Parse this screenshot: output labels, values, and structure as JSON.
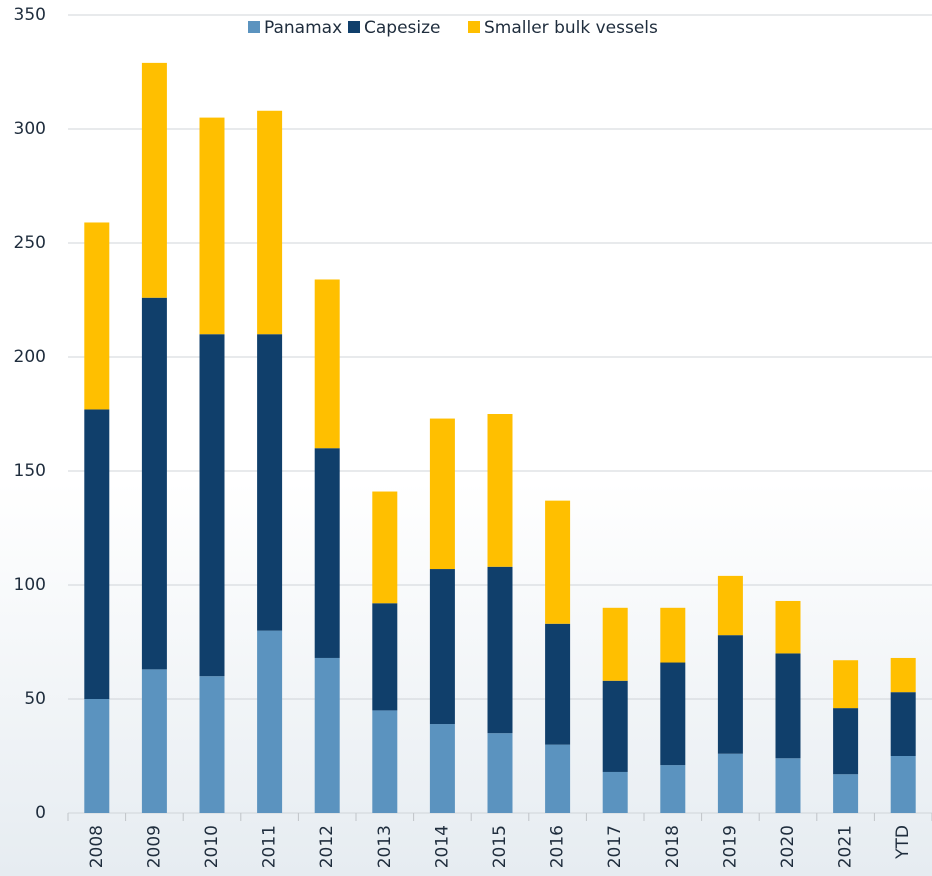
{
  "chart_data": {
    "type": "stacked-bar",
    "categories": [
      "2008",
      "2009",
      "2010",
      "2011",
      "2012",
      "2013",
      "2014",
      "2015",
      "2016",
      "2017",
      "2018",
      "2019",
      "2020",
      "2021",
      "YTD"
    ],
    "series": [
      {
        "name": "Panamax",
        "color": "#5b93bf",
        "values": [
          50,
          63,
          60,
          80,
          68,
          45,
          39,
          35,
          30,
          18,
          21,
          26,
          24,
          17,
          25
        ]
      },
      {
        "name": "Capesize",
        "color": "#103f6b",
        "values": [
          127,
          163,
          150,
          130,
          92,
          47,
          68,
          73,
          53,
          40,
          45,
          52,
          46,
          29,
          28
        ]
      },
      {
        "name": "Smaller bulk vessels",
        "color": "#ffbf00",
        "values": [
          82,
          103,
          95,
          98,
          74,
          49,
          66,
          67,
          54,
          32,
          24,
          26,
          23,
          21,
          15
        ]
      }
    ],
    "ylim": [
      0,
      350
    ],
    "yticks": [
      0,
      50,
      100,
      150,
      200,
      250,
      300,
      350
    ],
    "grid": true,
    "legend": "top"
  }
}
